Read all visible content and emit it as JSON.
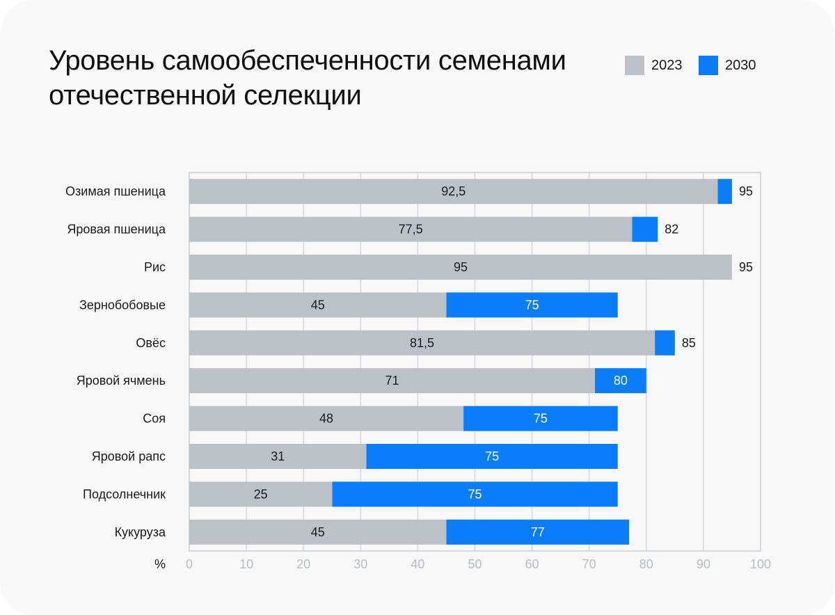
{
  "title": "Уровень самообеспеченности семенами отечественной селекции",
  "legend": [
    {
      "label": "2023",
      "color": "#bcc1c8"
    },
    {
      "label": "2030",
      "color": "#0a7dfa"
    }
  ],
  "chart_data": {
    "type": "bar",
    "orientation": "horizontal",
    "title": "Уровень самообеспеченности семенами отечественной селекции",
    "xlabel": "%",
    "ylabel": "",
    "xlim": [
      0,
      100
    ],
    "xticks": [
      0,
      10,
      20,
      30,
      40,
      50,
      60,
      70,
      80,
      90,
      100
    ],
    "grid": true,
    "legend_position": "top-right",
    "categories": [
      "Озимая пшеница",
      "Яровая пшеница",
      "Рис",
      "Зернобобовые",
      "Овёс",
      "Яровой ячмень",
      "Соя",
      "Яровой рапс",
      "Подсолнечник",
      "Кукуруза"
    ],
    "series": [
      {
        "name": "2023",
        "color": "#bcc1c8",
        "values": [
          92.5,
          77.5,
          95,
          45,
          81.5,
          71,
          48,
          31,
          25,
          45
        ],
        "labels": [
          "92,5",
          "77,5",
          "95",
          "45",
          "81,5",
          "71",
          "48",
          "31",
          "25",
          "45"
        ]
      },
      {
        "name": "2030",
        "color": "#0a7dfa",
        "values": [
          95,
          82,
          95,
          75,
          85,
          80,
          75,
          75,
          75,
          77
        ],
        "labels": [
          "95",
          "82",
          "95",
          "75",
          "85",
          "80",
          "75",
          "75",
          "75",
          "77"
        ]
      }
    ]
  }
}
